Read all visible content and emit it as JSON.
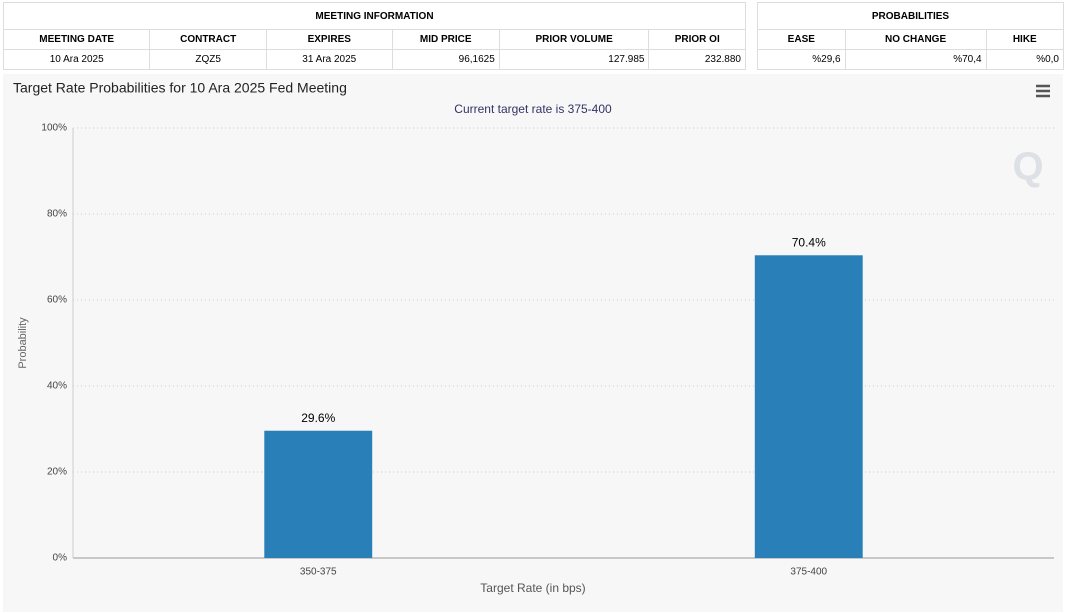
{
  "meeting_info": {
    "title": "MEETING INFORMATION",
    "headers": [
      "MEETING DATE",
      "CONTRACT",
      "EXPIRES",
      "MID PRICE",
      "PRIOR VOLUME",
      "PRIOR OI"
    ],
    "row": [
      "10 Ara 2025",
      "ZQZ5",
      "31 Ara 2025",
      "96,1625",
      "127.985",
      "232.880"
    ]
  },
  "probabilities": {
    "title": "PROBABILITIES",
    "headers": [
      "EASE",
      "NO CHANGE",
      "HIKE"
    ],
    "row": [
      "%29,6",
      "%70,4",
      "%0,0"
    ]
  },
  "chart_data": {
    "type": "bar",
    "title": "Target Rate Probabilities for 10 Ara 2025 Fed Meeting",
    "subtitle": "Current target rate is 375-400",
    "categories": [
      "350-375",
      "375-400"
    ],
    "values": [
      29.6,
      70.4
    ],
    "value_labels": [
      "29.6%",
      "70.4%"
    ],
    "color": "#2980b9",
    "x_label": "Target Rate (in bps)",
    "y_label": "Probability",
    "ylim": [
      0,
      100
    ],
    "yticks": [
      {
        "value": 0,
        "label": "0%"
      },
      {
        "value": 20,
        "label": "20%"
      },
      {
        "value": 40,
        "label": "40%"
      },
      {
        "value": 60,
        "label": "60%"
      },
      {
        "value": 80,
        "label": "80%"
      },
      {
        "value": 100,
        "label": "100%"
      }
    ],
    "grid": true
  }
}
